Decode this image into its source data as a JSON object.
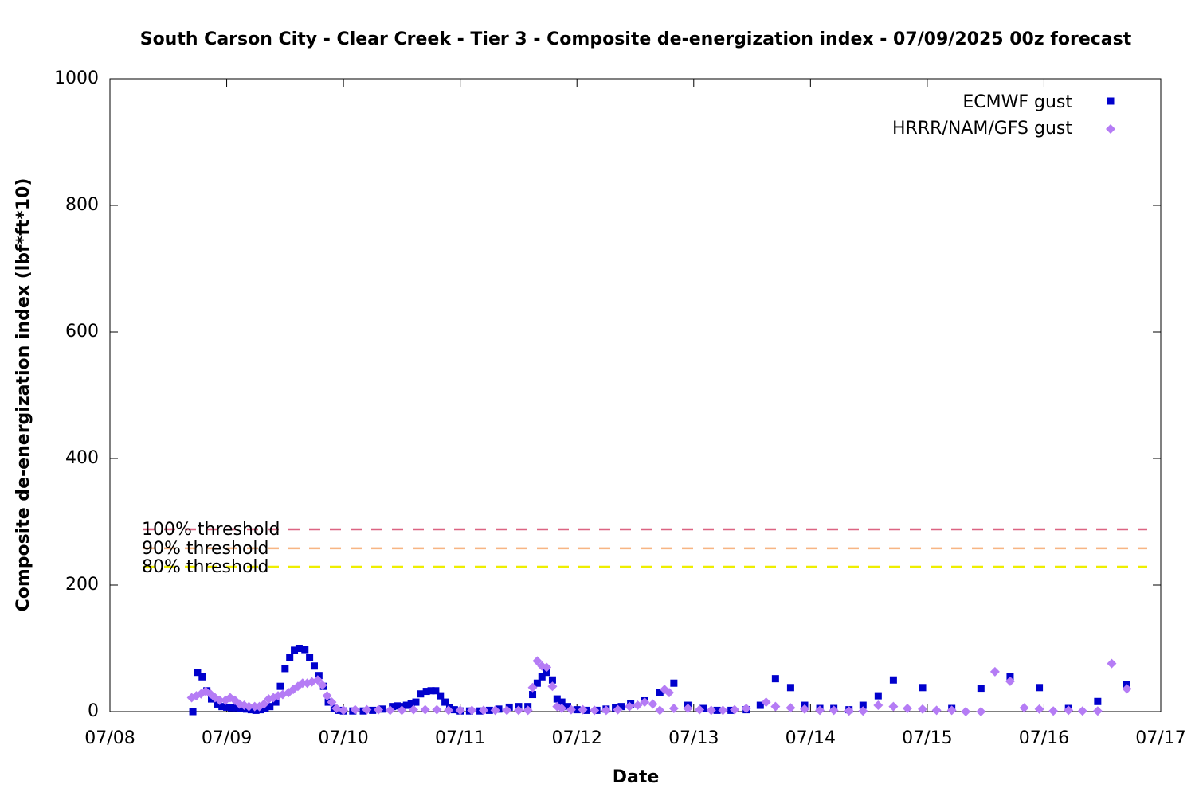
{
  "chart_data": {
    "type": "scatter",
    "title": "South Carson City - Clear Creek - Tier 3 - Composite de-energization index - 07/09/2025 00z forecast",
    "x_label": "Date",
    "y_label": "Composite de-energization index (lbf*ft*10)",
    "xlim": [
      8,
      17
    ],
    "xticks": [
      {
        "value": 8,
        "label": "07/08"
      },
      {
        "value": 9,
        "label": "07/09"
      },
      {
        "value": 10,
        "label": "07/10"
      },
      {
        "value": 11,
        "label": "07/11"
      },
      {
        "value": 12,
        "label": "07/12"
      },
      {
        "value": 13,
        "label": "07/13"
      },
      {
        "value": 14,
        "label": "07/14"
      },
      {
        "value": 15,
        "label": "07/15"
      },
      {
        "value": 16,
        "label": "07/16"
      },
      {
        "value": 17,
        "label": "07/17"
      }
    ],
    "ylim": [
      0,
      1000
    ],
    "yticks": [
      0,
      200,
      400,
      600,
      800,
      1000
    ],
    "legend": "top-right",
    "thresholds": [
      {
        "name": "100% threshold",
        "value": 288,
        "color": "#dc6482"
      },
      {
        "name": "90% threshold",
        "value": 258,
        "color": "#f7b583"
      },
      {
        "name": "80% threshold",
        "value": 229,
        "color": "#eeee00"
      }
    ],
    "series": [
      {
        "name": "ECMWF gust",
        "color": "#0000cc",
        "marker": "square",
        "x": [
          8.71,
          8.75,
          8.79,
          8.83,
          8.87,
          8.92,
          8.96,
          9.0,
          9.04,
          9.08,
          9.12,
          9.17,
          9.21,
          9.25,
          9.29,
          9.33,
          9.37,
          9.42,
          9.46,
          9.5,
          9.54,
          9.58,
          9.62,
          9.67,
          9.71,
          9.75,
          9.79,
          9.83,
          9.87,
          9.92,
          9.96,
          10.0,
          10.08,
          10.17,
          10.25,
          10.33,
          10.42,
          10.46,
          10.5,
          10.54,
          10.58,
          10.62,
          10.66,
          10.71,
          10.75,
          10.79,
          10.83,
          10.87,
          10.91,
          10.95,
          11.0,
          11.08,
          11.17,
          11.25,
          11.33,
          11.42,
          11.5,
          11.58,
          11.62,
          11.66,
          11.7,
          11.74,
          11.79,
          11.83,
          11.87,
          11.92,
          12.0,
          12.08,
          12.17,
          12.25,
          12.33,
          12.38,
          12.46,
          12.58,
          12.71,
          12.83,
          12.95,
          13.08,
          13.2,
          13.32,
          13.45,
          13.57,
          13.7,
          13.83,
          13.95,
          14.08,
          14.2,
          14.33,
          14.45,
          14.58,
          14.71,
          14.96,
          15.21,
          15.46,
          15.71,
          15.96,
          16.21,
          16.46,
          16.71
        ],
        "values": [
          0,
          62,
          55,
          33,
          20,
          12,
          8,
          7,
          6,
          6,
          5,
          4,
          3,
          2,
          3,
          5,
          8,
          15,
          40,
          68,
          86,
          97,
          100,
          98,
          86,
          72,
          57,
          40,
          15,
          5,
          2,
          1,
          1,
          1,
          2,
          4,
          8,
          9,
          8,
          10,
          12,
          15,
          28,
          32,
          33,
          33,
          25,
          15,
          6,
          3,
          1,
          1,
          1,
          2,
          4,
          7,
          8,
          8,
          27,
          45,
          55,
          62,
          50,
          20,
          15,
          8,
          3,
          2,
          2,
          4,
          6,
          8,
          12,
          17,
          30,
          45,
          10,
          5,
          2,
          2,
          3,
          10,
          52,
          38,
          10,
          5,
          5,
          3,
          10,
          25,
          50,
          38,
          5,
          37,
          55,
          38,
          5,
          16,
          43
        ]
      },
      {
        "name": "HRRR/NAM/GFS gust",
        "color": "#b57cf5",
        "marker": "diamond",
        "x": [
          8.7,
          8.74,
          8.78,
          8.82,
          8.86,
          8.9,
          8.94,
          8.99,
          9.03,
          9.07,
          9.11,
          9.15,
          9.19,
          9.24,
          9.28,
          9.32,
          9.36,
          9.4,
          9.44,
          9.48,
          9.53,
          9.57,
          9.61,
          9.65,
          9.69,
          9.73,
          9.78,
          9.82,
          9.86,
          9.9,
          9.94,
          10.0,
          10.1,
          10.2,
          10.3,
          10.4,
          10.5,
          10.6,
          10.7,
          10.8,
          10.9,
          11.0,
          11.1,
          11.2,
          11.3,
          11.4,
          11.5,
          11.58,
          11.62,
          11.66,
          11.7,
          11.74,
          11.79,
          11.83,
          11.87,
          11.95,
          12.05,
          12.15,
          12.25,
          12.35,
          12.45,
          12.52,
          12.58,
          12.65,
          12.71,
          12.75,
          12.79,
          12.83,
          12.95,
          13.05,
          13.15,
          13.25,
          13.35,
          13.45,
          13.62,
          13.7,
          13.83,
          13.95,
          14.08,
          14.2,
          14.33,
          14.45,
          14.58,
          14.71,
          14.83,
          14.96,
          15.08,
          15.21,
          15.33,
          15.46,
          15.58,
          15.71,
          15.83,
          15.96,
          16.08,
          16.21,
          16.33,
          16.46,
          16.58,
          16.71
        ],
        "values": [
          22,
          25,
          28,
          32,
          28,
          22,
          18,
          18,
          22,
          18,
          12,
          10,
          8,
          8,
          8,
          12,
          20,
          22,
          25,
          27,
          30,
          35,
          40,
          45,
          45,
          47,
          50,
          42,
          25,
          15,
          5,
          2,
          3,
          3,
          3,
          2,
          2,
          3,
          3,
          3,
          2,
          2,
          2,
          2,
          2,
          2,
          2,
          2,
          38,
          80,
          72,
          70,
          40,
          8,
          5,
          3,
          3,
          2,
          2,
          3,
          8,
          10,
          15,
          12,
          2,
          35,
          30,
          5,
          5,
          3,
          2,
          2,
          3,
          5,
          15,
          8,
          6,
          4,
          2,
          2,
          1,
          1,
          10,
          8,
          5,
          4,
          2,
          2,
          0,
          0,
          63,
          48,
          6,
          4,
          1,
          2,
          1,
          1,
          76,
          36
        ]
      }
    ]
  }
}
